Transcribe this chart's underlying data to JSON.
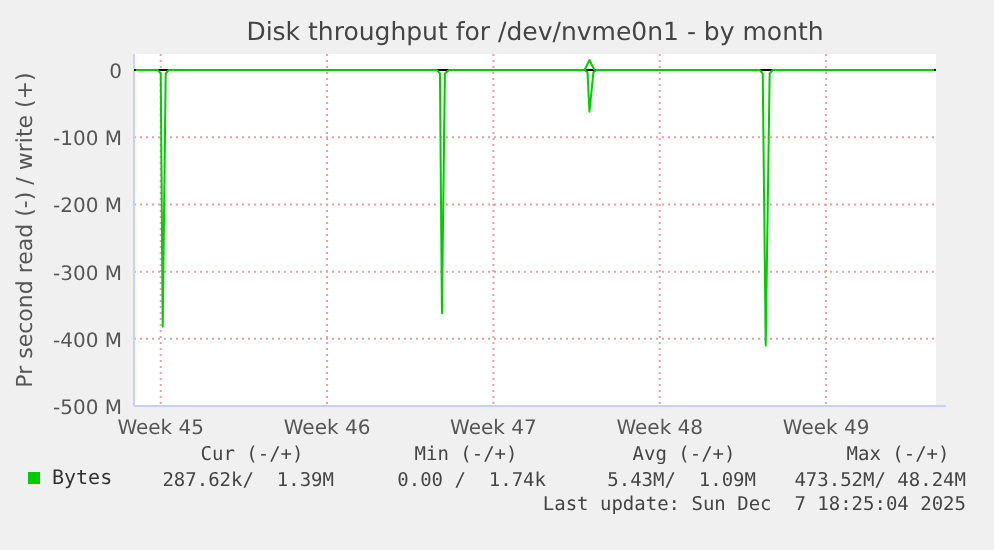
{
  "chart_data": {
    "type": "line",
    "title": "Disk throughput for /dev/nvme0n1 - by month",
    "ylabel": "Pr second read (-) / write (+)",
    "xlim": [
      "2025-11-01T21:00",
      "2025-12-05T15:00"
    ],
    "xticks": [
      {
        "value": "2025-11-03",
        "label": "Week 45"
      },
      {
        "value": "2025-11-10",
        "label": "Week 46"
      },
      {
        "value": "2025-11-17",
        "label": "Week 47"
      },
      {
        "value": "2025-11-24",
        "label": "Week 48"
      },
      {
        "value": "2025-12-01",
        "label": "Week 49"
      }
    ],
    "ylim": [
      -500,
      24
    ],
    "yticks": [
      {
        "value": -500,
        "label": "-500 M"
      },
      {
        "value": -400,
        "label": "-400 M"
      },
      {
        "value": -300,
        "label": "-300 M"
      },
      {
        "value": -200,
        "label": "-200 M"
      },
      {
        "value": -100,
        "label": "-100 M"
      },
      0
    ],
    "grid": true,
    "legend": "bottom",
    "ref_lines": [
      {
        "axis": "y",
        "value": 0,
        "color": "#000000"
      }
    ],
    "series": [
      {
        "name": "Bytes",
        "color": "#00cc00",
        "x": [
          "2025-11-01T23:00",
          "2025-11-02T21:00",
          "2025-11-03T00:00",
          "2025-11-03T02:00",
          "2025-11-03T05:00",
          "2025-11-03T08:00",
          "2025-11-06T12:00",
          "2025-11-10T00:00",
          "2025-11-13T12:00",
          "2025-11-14T15:00",
          "2025-11-14T18:00",
          "2025-11-14T20:00",
          "2025-11-14T23:00",
          "2025-11-15T03:00",
          "2025-11-17T00:00",
          "2025-11-20T20:00",
          "2025-11-20T23:00",
          "2025-11-21T01:00",
          "2025-11-21T05:00",
          "2025-11-21T08:00",
          "2025-11-24T00:00",
          "2025-11-28T05:00",
          "2025-11-28T08:00",
          "2025-11-28T11:00",
          "2025-11-28T15:00",
          "2025-11-28T18:00",
          "2025-12-01T00:00",
          "2025-12-04T12:00",
          "2025-12-05T13:00"
        ],
        "values": [
          0,
          0,
          -5,
          -382,
          -5,
          0,
          0,
          0,
          0,
          0,
          -5,
          -362,
          -5,
          0,
          0,
          0,
          -3,
          -62,
          -3,
          0,
          0,
          0,
          -5,
          -410,
          -5,
          0,
          0,
          0,
          0
        ]
      },
      {
        "color": "#00cc00",
        "x": [
          "2025-11-20T20:00",
          "2025-11-21T01:00",
          "2025-11-21T06:00"
        ],
        "values": [
          0,
          15,
          0
        ]
      }
    ],
    "annotations": [
      "Cur (-/+)",
      "Min (-/+)",
      "Avg (-/+)",
      "Max (-/+)",
      "287.62k/  1.39M",
      "0.00 /  1.74k",
      "5.43M/  1.09M",
      "473.52M/ 48.24M",
      "Last update: Sun Dec  7 18:25:04 2025"
    ]
  }
}
